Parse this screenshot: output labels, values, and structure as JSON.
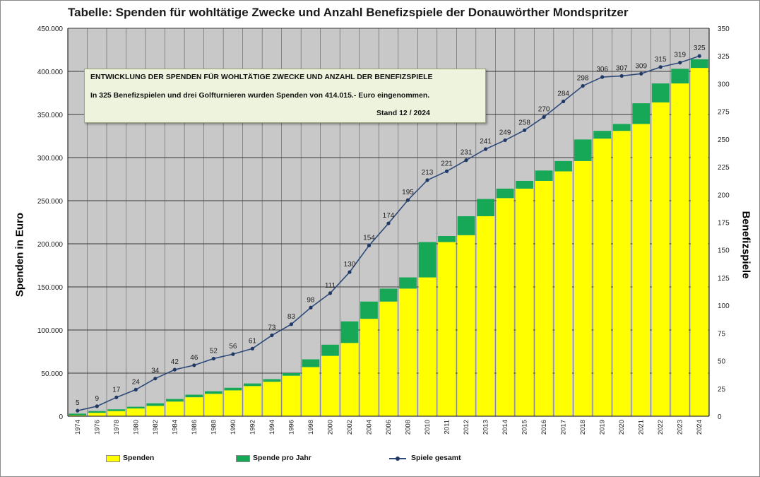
{
  "title": "Tabelle: Spenden für wohltätige Zwecke und Anzahl Benefizspiele der Donauwörther Mondspritzer",
  "info_box": {
    "line1": "ENTWICKLUNG DER SPENDEN FÜR WOHLTÄTIGE ZWECKE UND ANZAHL DER BENEFIZSPIELE",
    "line2": "In 325 Benefizspielen und drei Golfturnieren wurden Spenden von 414.015.- Euro eingenommen.",
    "stand": "Stand 12 / 2024"
  },
  "legend": {
    "spenden": "Spenden",
    "spende_pro_jahr": "Spende pro Jahr",
    "spiele_gesamt": "Spiele gesamt"
  },
  "colors": {
    "spenden": "#ffff00",
    "spende_pro_jahr": "#16a857",
    "spiele_gesamt": "#2e4a7a",
    "plot_background": "#c8c8c8"
  },
  "chart_data": {
    "type": "bar",
    "title": "Tabelle: Spenden für wohltätige Zwecke und Anzahl Benefizspiele der Donauwörther Mondspritzer",
    "ylabel": "Spenden in Euro",
    "y2label": "Benefizspiele",
    "ylim": [
      0,
      450000
    ],
    "y2lim": [
      0,
      350
    ],
    "yticks": [
      "0",
      "50.000",
      "100.000",
      "150.000",
      "200.000",
      "250.000",
      "300.000",
      "350.000",
      "400.000",
      "450.000"
    ],
    "y2ticks": [
      "0",
      "25",
      "50",
      "75",
      "100",
      "125",
      "150",
      "175",
      "200",
      "225",
      "250",
      "275",
      "300",
      "325",
      "350"
    ],
    "grid": true,
    "legend_position": "bottom",
    "categories": [
      "1974",
      "1976",
      "1978",
      "1980",
      "1982",
      "1984",
      "1986",
      "1988",
      "1990",
      "1992",
      "1994",
      "1996",
      "1998",
      "2000",
      "2002",
      "2004",
      "2006",
      "2008",
      "2010",
      "2011",
      "2012",
      "2013",
      "2014",
      "2015",
      "2016",
      "2017",
      "2018",
      "2019",
      "2020",
      "2021",
      "2022",
      "2023",
      "2024"
    ],
    "series": [
      {
        "name": "Spenden",
        "kind": "stacked-bar",
        "values": [
          1000,
          4000,
          6000,
          9000,
          12000,
          17000,
          22000,
          26000,
          30000,
          35000,
          40000,
          47000,
          57000,
          70000,
          85000,
          113000,
          133000,
          148000,
          161000,
          202000,
          210000,
          232000,
          253000,
          264000,
          273000,
          284000,
          296000,
          322000,
          331000,
          339000,
          364000,
          386000,
          404000
        ]
      },
      {
        "name": "Spende pro Jahr",
        "kind": "stacked-bar",
        "values": [
          2000,
          2000,
          2000,
          2000,
          3000,
          3000,
          3000,
          3000,
          3000,
          3000,
          3000,
          3000,
          9000,
          13000,
          25000,
          20000,
          15000,
          13000,
          41000,
          7000,
          22000,
          20000,
          11000,
          9000,
          12000,
          12000,
          25000,
          9000,
          8000,
          24000,
          22000,
          17000,
          10015
        ]
      },
      {
        "name": "Spiele gesamt",
        "kind": "line",
        "axis": "right",
        "values": [
          5,
          9,
          17,
          24,
          34,
          42,
          46,
          52,
          56,
          61,
          73,
          83,
          98,
          111,
          130,
          154,
          174,
          195,
          213,
          221,
          231,
          241,
          249,
          258,
          270,
          284,
          298,
          306,
          307,
          309,
          315,
          319,
          325
        ],
        "labels": [
          "5",
          "9",
          "17",
          "24",
          "34",
          "42",
          "46",
          "52",
          "56",
          "61",
          "73",
          "83",
          "98",
          "111",
          "130",
          "154",
          "174",
          "195",
          "213",
          "221",
          "231",
          "241",
          "249",
          "258",
          "270",
          "284",
          "298",
          "306",
          "307",
          "309",
          "315",
          "319",
          "325"
        ]
      }
    ]
  }
}
